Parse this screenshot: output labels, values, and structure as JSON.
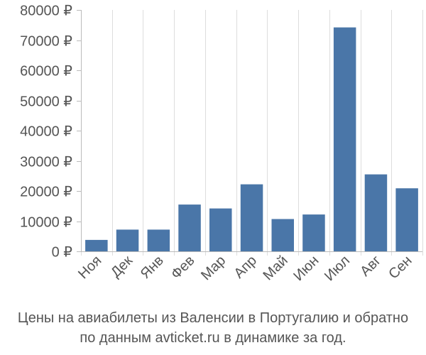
{
  "chart_data": {
    "type": "bar",
    "categories": [
      "Ноя",
      "Дек",
      "Янв",
      "Фев",
      "Мар",
      "Апр",
      "Май",
      "Июн",
      "Июл",
      "Авг",
      "Сен"
    ],
    "values": [
      3800,
      7200,
      7200,
      15500,
      14200,
      22200,
      10700,
      12200,
      74200,
      25500,
      20900
    ],
    "ylim": [
      0,
      80000
    ],
    "y_ticks": [
      "0 ₽",
      "10000 ₽",
      "20000 ₽",
      "30000 ₽",
      "40000 ₽",
      "50000 ₽",
      "60000 ₽",
      "70000 ₽",
      "80000 ₽"
    ],
    "title": "",
    "xlabel": "",
    "ylabel": "",
    "grid": "vertical lines between categories",
    "colors": {
      "bar": "#4a76a8",
      "grid": "#dddddd",
      "axis": "#bbbbbb",
      "text": "#555555"
    }
  },
  "caption": {
    "line1": "Цены на авиабилеты из Валенсии в Португалию и обратно",
    "line2": "по данным avticket.ru в динамике за год."
  }
}
